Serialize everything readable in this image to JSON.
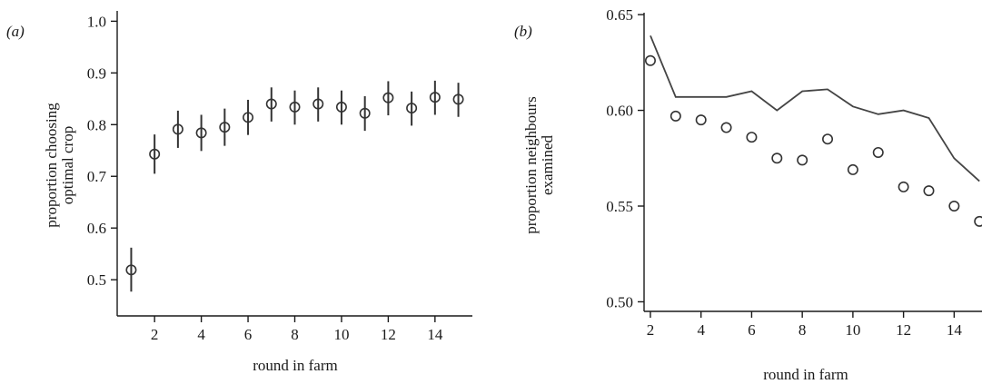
{
  "chart_data": [
    {
      "type": "scatter",
      "panel_label": "(a)",
      "xlabel": "round in farm",
      "ylabel_lines": [
        "proportion choosing",
        "optimal crop"
      ],
      "xlim": [
        0.4,
        15.6
      ],
      "ylim": [
        0.43,
        1.02
      ],
      "xticks": [
        2,
        4,
        6,
        8,
        10,
        12,
        14
      ],
      "xtick_labels": [
        "2",
        "4",
        "6",
        "8",
        "10",
        "12",
        "14"
      ],
      "yticks": [
        0.5,
        0.6,
        0.7,
        0.8,
        0.9,
        1.0
      ],
      "ytick_labels": [
        "0.5",
        "0.6",
        "0.7",
        "0.8",
        "0.9",
        "1.0"
      ],
      "series": [
        {
          "marker": "open-circle",
          "error_bars": true,
          "x": [
            1,
            2,
            3,
            4,
            5,
            6,
            7,
            8,
            9,
            10,
            11,
            12,
            13,
            14,
            15
          ],
          "y": [
            0.519,
            0.743,
            0.791,
            0.784,
            0.795,
            0.814,
            0.84,
            0.834,
            0.84,
            0.834,
            0.822,
            0.852,
            0.832,
            0.853,
            0.849
          ],
          "low": [
            0.477,
            0.705,
            0.755,
            0.749,
            0.759,
            0.78,
            0.806,
            0.8,
            0.806,
            0.8,
            0.788,
            0.818,
            0.798,
            0.819,
            0.815
          ],
          "high": [
            0.562,
            0.781,
            0.827,
            0.819,
            0.831,
            0.848,
            0.872,
            0.866,
            0.872,
            0.866,
            0.855,
            0.884,
            0.864,
            0.885,
            0.881
          ]
        }
      ]
    },
    {
      "type": "scatter",
      "panel_label": "(b)",
      "xlabel": "round in farm",
      "ylabel_lines": [
        "proportion neighbours",
        "examined"
      ],
      "xlim": [
        1.75,
        15.1
      ],
      "ylim": [
        0.495,
        0.651
      ],
      "xticks": [
        2,
        4,
        6,
        8,
        10,
        12,
        14
      ],
      "xtick_labels": [
        "2",
        "4",
        "6",
        "8",
        "10",
        "12",
        "14"
      ],
      "yticks": [
        0.5,
        0.55,
        0.6,
        0.65
      ],
      "ytick_labels": [
        "0.50",
        "0.55",
        "0.60",
        "0.65"
      ],
      "series": [
        {
          "kind": "points",
          "marker": "open-circle",
          "x": [
            2,
            3,
            4,
            5,
            6,
            7,
            8,
            9,
            10,
            11,
            12,
            13,
            14,
            15
          ],
          "y": [
            0.626,
            0.597,
            0.595,
            0.591,
            0.586,
            0.575,
            0.574,
            0.585,
            0.569,
            0.578,
            0.56,
            0.558,
            0.55,
            0.542
          ]
        },
        {
          "kind": "line",
          "x": [
            2,
            3,
            4,
            5,
            6,
            7,
            8,
            9,
            10,
            11,
            12,
            13,
            14,
            15
          ],
          "y": [
            0.639,
            0.607,
            0.607,
            0.607,
            0.61,
            0.6,
            0.61,
            0.611,
            0.602,
            0.598,
            0.6,
            0.596,
            0.575,
            0.563
          ]
        }
      ]
    }
  ]
}
